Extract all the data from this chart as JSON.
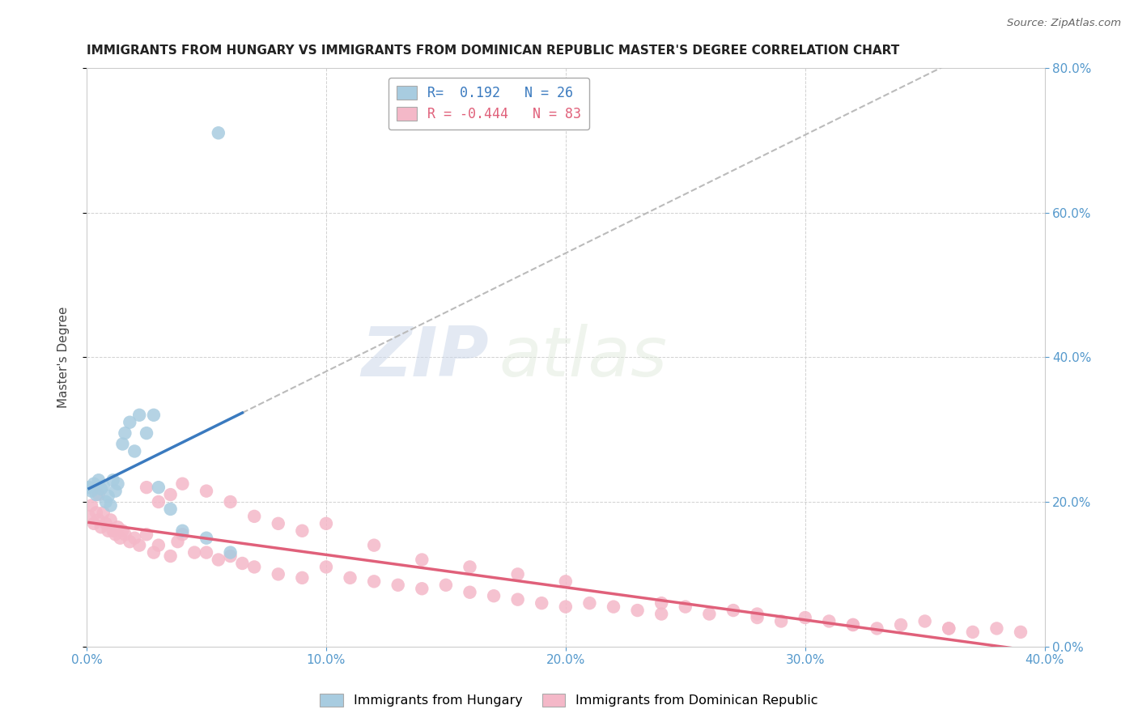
{
  "title": "IMMIGRANTS FROM HUNGARY VS IMMIGRANTS FROM DOMINICAN REPUBLIC MASTER'S DEGREE CORRELATION CHART",
  "source": "Source: ZipAtlas.com",
  "ylabel": "Master's Degree",
  "legend_hungary": "Immigrants from Hungary",
  "legend_dr": "Immigrants from Dominican Republic",
  "R_hungary": 0.192,
  "N_hungary": 26,
  "R_dr": -0.444,
  "N_dr": 83,
  "hungary_color": "#a8cce0",
  "dr_color": "#f4b8c8",
  "hungary_line_color": "#3a7abf",
  "dr_line_color": "#e0607a",
  "dashed_line_color": "#bbbbbb",
  "background_color": "#ffffff",
  "grid_color": "#cccccc",
  "watermark_zip": "ZIP",
  "watermark_atlas": "atlas",
  "xlim": [
    0.0,
    0.4
  ],
  "ylim": [
    0.0,
    0.8
  ],
  "yticks": [
    0.0,
    0.2,
    0.4,
    0.6,
    0.8
  ],
  "xticks": [
    0.0,
    0.1,
    0.2,
    0.3,
    0.4
  ],
  "hungary_x": [
    0.001,
    0.002,
    0.003,
    0.004,
    0.005,
    0.006,
    0.007,
    0.008,
    0.009,
    0.01,
    0.011,
    0.012,
    0.013,
    0.015,
    0.016,
    0.018,
    0.02,
    0.022,
    0.025,
    0.028,
    0.03,
    0.035,
    0.04,
    0.05,
    0.06,
    0.055
  ],
  "hungary_y": [
    0.22,
    0.215,
    0.225,
    0.21,
    0.23,
    0.218,
    0.222,
    0.2,
    0.208,
    0.195,
    0.23,
    0.215,
    0.225,
    0.28,
    0.295,
    0.31,
    0.27,
    0.32,
    0.295,
    0.32,
    0.22,
    0.19,
    0.16,
    0.15,
    0.13,
    0.71
  ],
  "dr_x": [
    0.001,
    0.002,
    0.003,
    0.004,
    0.005,
    0.006,
    0.007,
    0.008,
    0.009,
    0.01,
    0.011,
    0.012,
    0.013,
    0.014,
    0.015,
    0.016,
    0.018,
    0.02,
    0.022,
    0.025,
    0.028,
    0.03,
    0.035,
    0.038,
    0.04,
    0.045,
    0.05,
    0.055,
    0.06,
    0.065,
    0.07,
    0.08,
    0.09,
    0.1,
    0.11,
    0.12,
    0.13,
    0.14,
    0.15,
    0.16,
    0.17,
    0.18,
    0.19,
    0.2,
    0.21,
    0.22,
    0.23,
    0.24,
    0.25,
    0.26,
    0.27,
    0.28,
    0.29,
    0.3,
    0.31,
    0.32,
    0.33,
    0.34,
    0.35,
    0.36,
    0.37,
    0.38,
    0.39,
    0.025,
    0.03,
    0.035,
    0.04,
    0.05,
    0.06,
    0.07,
    0.08,
    0.09,
    0.1,
    0.12,
    0.14,
    0.16,
    0.18,
    0.2,
    0.24,
    0.28,
    0.32,
    0.36,
    0.005
  ],
  "dr_y": [
    0.18,
    0.195,
    0.17,
    0.185,
    0.175,
    0.165,
    0.185,
    0.17,
    0.16,
    0.175,
    0.16,
    0.155,
    0.165,
    0.15,
    0.16,
    0.155,
    0.145,
    0.15,
    0.14,
    0.155,
    0.13,
    0.14,
    0.125,
    0.145,
    0.155,
    0.13,
    0.13,
    0.12,
    0.125,
    0.115,
    0.11,
    0.1,
    0.095,
    0.11,
    0.095,
    0.09,
    0.085,
    0.08,
    0.085,
    0.075,
    0.07,
    0.065,
    0.06,
    0.055,
    0.06,
    0.055,
    0.05,
    0.045,
    0.055,
    0.045,
    0.05,
    0.04,
    0.035,
    0.04,
    0.035,
    0.03,
    0.025,
    0.03,
    0.035,
    0.025,
    0.02,
    0.025,
    0.02,
    0.22,
    0.2,
    0.21,
    0.225,
    0.215,
    0.2,
    0.18,
    0.17,
    0.16,
    0.17,
    0.14,
    0.12,
    0.11,
    0.1,
    0.09,
    0.06,
    0.045,
    0.03,
    0.025,
    0.21
  ]
}
